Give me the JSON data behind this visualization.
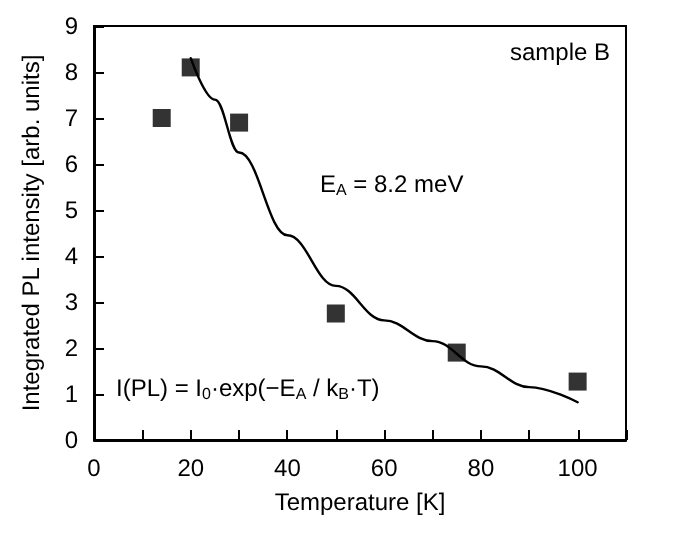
{
  "chart_data": {
    "type": "scatter",
    "xlabel": "Temperature [K]",
    "ylabel": "Integrated PL intensity [arb. units]",
    "annotations": [
      "sample B",
      "E$_{A}$ = 8.2 meV",
      "I(PL) = I$_{0}$·exp(−E$_{A}$ / k$_{B}$·T)"
    ],
    "series": [
      {
        "color": "#000000",
        "marker": "square",
        "x": [
          14,
          20,
          30,
          50,
          75,
          100
        ],
        "values": [
          7.0,
          8.1,
          6.9,
          2.75,
          1.9,
          1.27
        ]
      },
      {
        "type": "line",
        "color": "#000000",
        "marker": "none",
        "line_style": "solid",
        "x": [
          20,
          25,
          30,
          40,
          50,
          60,
          70,
          80,
          90,
          100
        ],
        "values": [
          8.3,
          7.4,
          6.25,
          4.45,
          3.35,
          2.6,
          2.15,
          1.6,
          1.15,
          0.82
        ]
      }
    ],
    "xlim": [
      0,
      110
    ],
    "ylim": [
      0,
      9
    ],
    "xticks": [
      0,
      {
        "value": 10,
        "label": null
      },
      20,
      {
        "value": 30,
        "label": null
      },
      40,
      {
        "value": 50,
        "label": null
      },
      60,
      {
        "value": 70,
        "label": null
      },
      80,
      {
        "value": 90,
        "label": null
      },
      100,
      {
        "value": 110,
        "label": null
      }
    ],
    "yticks": [
      0,
      1,
      2,
      3,
      4,
      5,
      6,
      7,
      8,
      9
    ],
    "grid": false
  }
}
